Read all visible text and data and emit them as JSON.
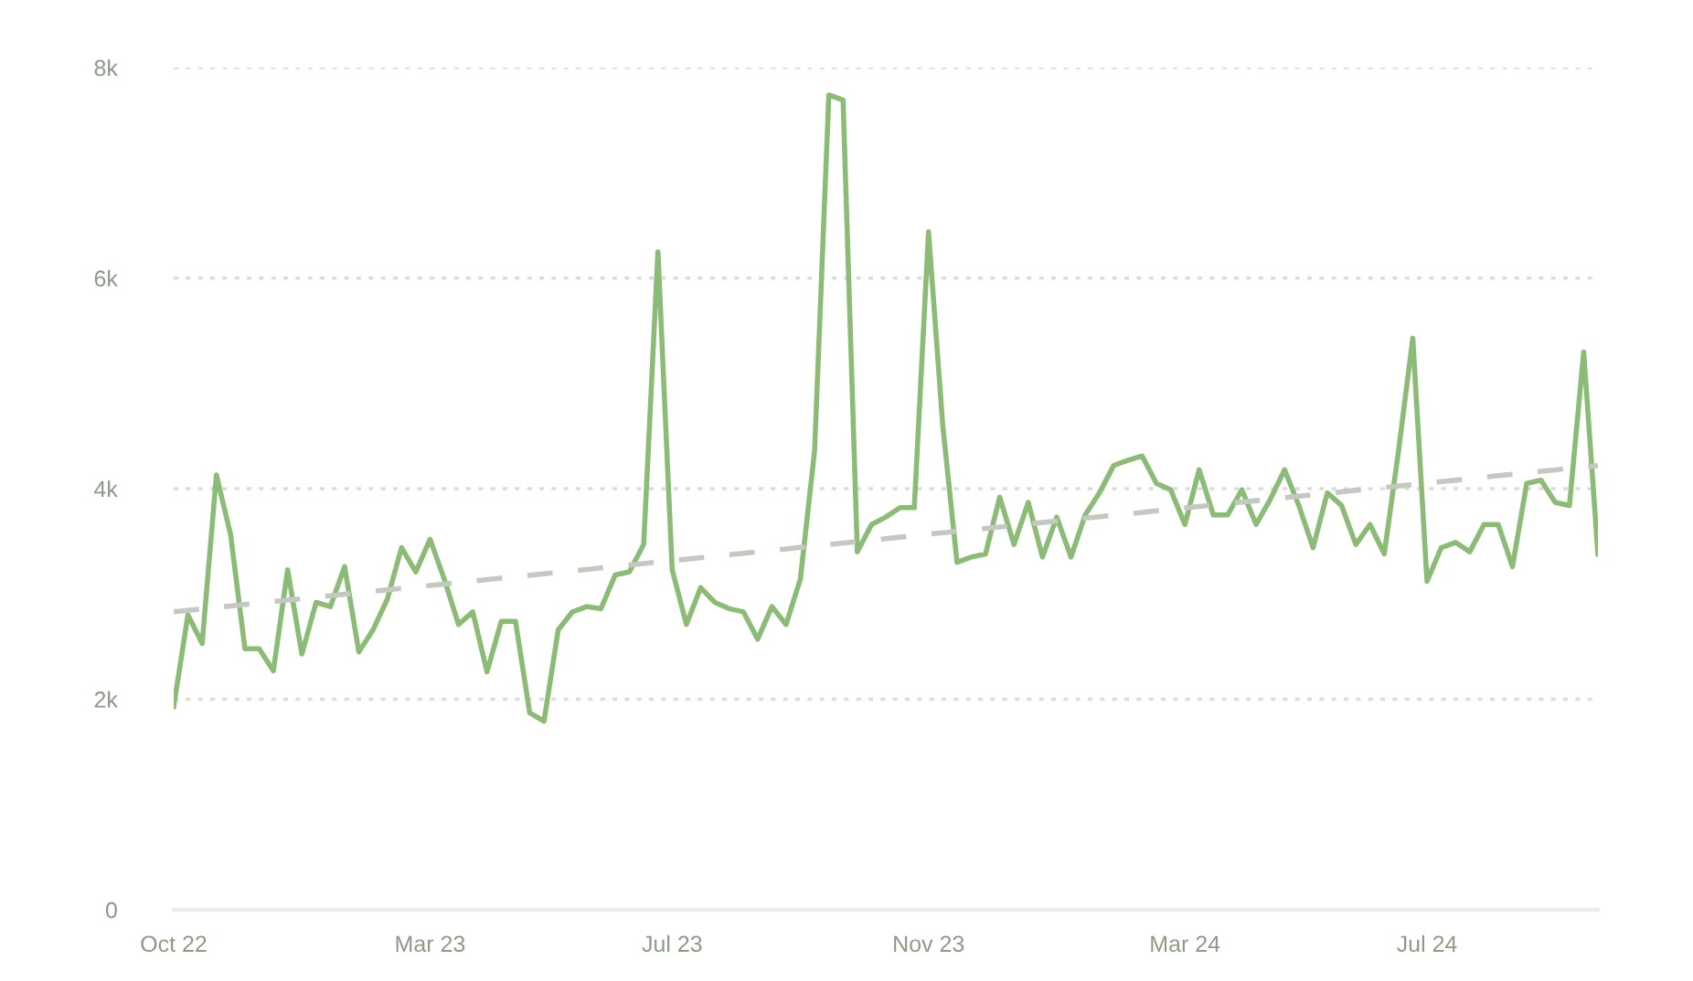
{
  "chart_data": {
    "type": "line",
    "categories": [
      "Oct 22",
      null,
      null,
      null,
      null,
      null,
      null,
      null,
      null,
      null,
      null,
      null,
      null,
      null,
      null,
      null,
      null,
      null,
      "Mar 23",
      null,
      null,
      null,
      null,
      null,
      null,
      null,
      null,
      null,
      null,
      null,
      null,
      null,
      null,
      null,
      null,
      "Jul 23",
      null,
      null,
      null,
      null,
      null,
      null,
      null,
      null,
      null,
      null,
      null,
      null,
      null,
      null,
      null,
      null,
      null,
      "Nov 23",
      null,
      null,
      null,
      null,
      null,
      null,
      null,
      null,
      null,
      null,
      null,
      null,
      null,
      null,
      null,
      null,
      null,
      "Mar 24",
      null,
      null,
      null,
      null,
      null,
      null,
      null,
      null,
      null,
      null,
      null,
      null,
      null,
      null,
      null,
      null,
      "Jul 24",
      null,
      null,
      null,
      null,
      null,
      null,
      null,
      null,
      null,
      null,
      null,
      null
    ],
    "series": [
      {
        "color": "#8cbb78",
        "line_style": "solid",
        "values": [
          1930,
          2800,
          2530,
          4130,
          3560,
          2480,
          2480,
          2270,
          3230,
          2430,
          2920,
          2880,
          3260,
          2450,
          2660,
          2950,
          3440,
          3210,
          3520,
          3140,
          2710,
          2830,
          2260,
          2740,
          2740,
          1870,
          1790,
          2660,
          2830,
          2880,
          2860,
          3180,
          3210,
          3470,
          6250,
          3230,
          2710,
          3060,
          2920,
          2860,
          2830,
          2570,
          2880,
          2710,
          3140,
          4360,
          7740,
          7690,
          3400,
          3660,
          3730,
          3820,
          3820,
          6440,
          4600,
          3300,
          3350,
          3380,
          3920,
          3470,
          3870,
          3350,
          3730,
          3350,
          3750,
          3960,
          4220,
          4270,
          4310,
          4050,
          3990,
          3660,
          4180,
          3750,
          3750,
          3990,
          3660,
          3900,
          4180,
          3840,
          3440,
          3960,
          3840,
          3470,
          3660,
          3380,
          4360,
          5430,
          3120,
          3440,
          3490,
          3400,
          3660,
          3660,
          3260,
          4050,
          4080,
          3870,
          3840,
          5300,
          3380
        ]
      },
      {
        "type": "line",
        "color": "#c4c8c0",
        "line_style": "dashed",
        "values": [
          2830,
          2844,
          2858,
          2872,
          2886,
          2900,
          2913,
          2927,
          2941,
          2955,
          2969,
          2983,
          2997,
          3011,
          3025,
          3039,
          3052,
          3066,
          3080,
          3094,
          3108,
          3122,
          3136,
          3150,
          3164,
          3178,
          3191,
          3205,
          3219,
          3233,
          3247,
          3261,
          3275,
          3289,
          3303,
          3317,
          3330,
          3344,
          3358,
          3372,
          3386,
          3400,
          3414,
          3428,
          3442,
          3456,
          3469,
          3483,
          3497,
          3511,
          3525,
          3539,
          3553,
          3567,
          3581,
          3595,
          3608,
          3622,
          3636,
          3650,
          3664,
          3678,
          3692,
          3706,
          3720,
          3734,
          3747,
          3761,
          3775,
          3789,
          3803,
          3817,
          3831,
          3845,
          3859,
          3873,
          3886,
          3900,
          3914,
          3928,
          3942,
          3956,
          3970,
          3984,
          3998,
          4012,
          4025,
          4039,
          4053,
          4067,
          4081,
          4095,
          4109,
          4123,
          4137,
          4151,
          4164,
          4178,
          4192,
          4206,
          4220
        ]
      }
    ],
    "ylim": [
      0,
      8000
    ],
    "yticks": [
      0,
      {
        "value": 2000,
        "label": "2k"
      },
      {
        "value": 4000,
        "label": "4k"
      },
      {
        "value": 6000,
        "label": "6k"
      },
      {
        "value": 8000,
        "label": "8k"
      }
    ],
    "grid": "y",
    "marker": "none"
  }
}
